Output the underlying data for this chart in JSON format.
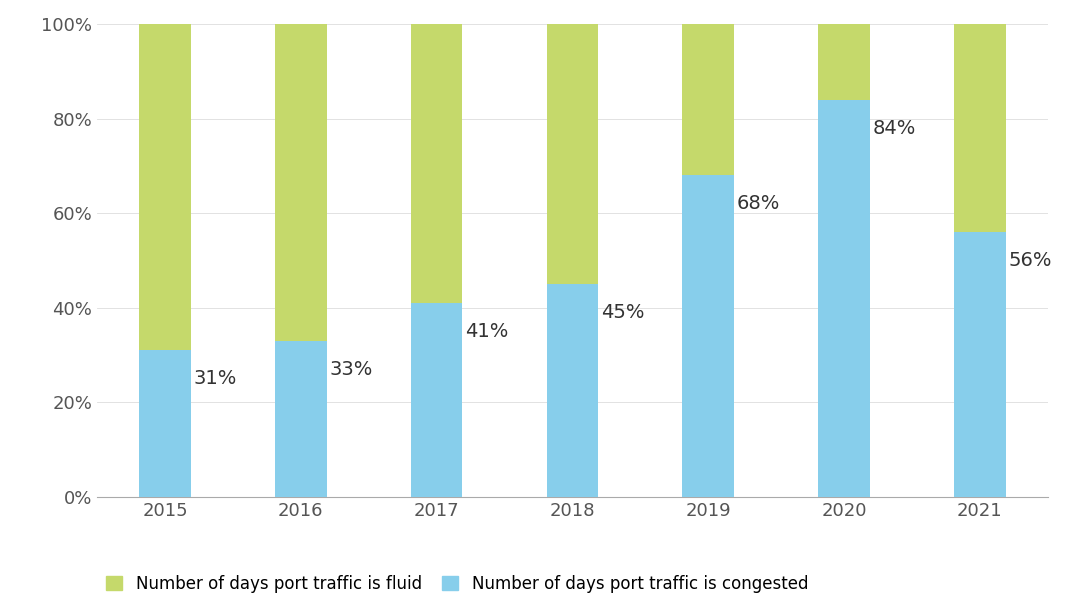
{
  "years": [
    "2015",
    "2016",
    "2017",
    "2018",
    "2019",
    "2020",
    "2021"
  ],
  "congested": [
    31,
    33,
    41,
    45,
    68,
    84,
    56
  ],
  "fluid": [
    69,
    67,
    59,
    55,
    32,
    16,
    44
  ],
  "color_congested": "#87CEEB",
  "color_fluid": "#C5D96B",
  "background_color": "#FFFFFF",
  "ylabel_ticks": [
    "0%",
    "20%",
    "40%",
    "60%",
    "80%",
    "100%"
  ],
  "ytick_vals": [
    0,
    20,
    40,
    60,
    80,
    100
  ],
  "legend_fluid": "Number of days port traffic is fluid",
  "legend_congested": "Number of days port traffic is congested",
  "bar_width": 0.38,
  "label_fontsize": 14,
  "tick_fontsize": 13,
  "legend_fontsize": 12
}
